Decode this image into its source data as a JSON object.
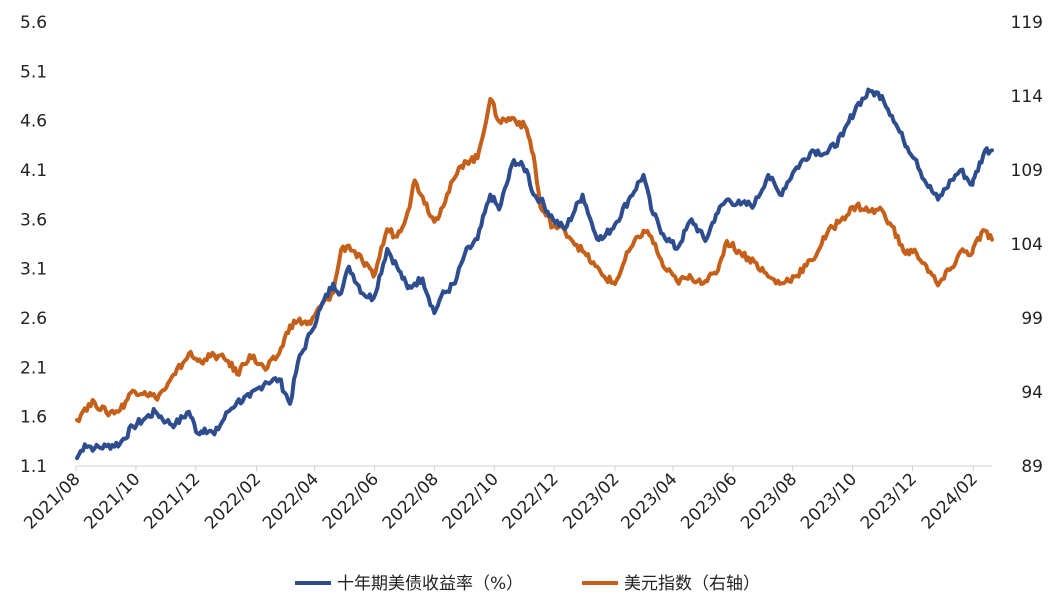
{
  "chart_data": {
    "type": "line",
    "title": "",
    "x_tick_labels": [
      "2021/08",
      "2021/10",
      "2021/12",
      "2022/02",
      "2022/04",
      "2022/06",
      "2022/08",
      "2022/10",
      "2022/12",
      "2023/02",
      "2023/04",
      "2023/06",
      "2023/08",
      "2023/10",
      "2023/12",
      "2024/02"
    ],
    "xlim": [
      "2021-08-01",
      "2024-02-20"
    ],
    "y_left": {
      "ylim": [
        1.1,
        5.6
      ],
      "ticks": [
        "1.1",
        "1.6",
        "2.1",
        "2.6",
        "3.1",
        "3.6",
        "4.1",
        "4.6",
        "5.1",
        "5.6"
      ]
    },
    "y_right": {
      "ylim": [
        89,
        119
      ],
      "ticks": [
        "89",
        "94",
        "99",
        "104",
        "109",
        "114",
        "119"
      ]
    },
    "grid": false,
    "legend_position": "bottom",
    "series": [
      {
        "name": "十年期美债收益率（%）",
        "axis": "left",
        "color": "#2e4d8f",
        "x": [
          "2021-08-02",
          "2021-08-10",
          "2021-08-20",
          "2021-09-01",
          "2021-09-15",
          "2021-09-28",
          "2021-10-10",
          "2021-10-21",
          "2021-11-01",
          "2021-11-10",
          "2021-11-24",
          "2021-12-03",
          "2021-12-10",
          "2021-12-20",
          "2022-01-03",
          "2022-01-12",
          "2022-01-25",
          "2022-02-10",
          "2022-02-24",
          "2022-03-07",
          "2022-03-15",
          "2022-03-28",
          "2022-04-07",
          "2022-04-20",
          "2022-04-28",
          "2022-05-06",
          "2022-05-20",
          "2022-05-31",
          "2022-06-14",
          "2022-06-24",
          "2022-07-05",
          "2022-07-12",
          "2022-07-20",
          "2022-08-01",
          "2022-08-08",
          "2022-08-22",
          "2022-09-01",
          "2022-09-14",
          "2022-09-27",
          "2022-10-06",
          "2022-10-21",
          "2022-11-03",
          "2022-11-10",
          "2022-11-17",
          "2022-11-30",
          "2022-12-12",
          "2022-12-30",
          "2023-01-12",
          "2023-01-19",
          "2023-02-01",
          "2023-02-15",
          "2023-03-02",
          "2023-03-10",
          "2023-03-22",
          "2023-04-05",
          "2023-04-20",
          "2023-05-04",
          "2023-05-15",
          "2023-05-26",
          "2023-06-09",
          "2023-06-23",
          "2023-07-07",
          "2023-07-19",
          "2023-08-03",
          "2023-08-21",
          "2023-09-05",
          "2023-09-21",
          "2023-10-05",
          "2023-10-19",
          "2023-10-31",
          "2023-11-10",
          "2023-11-22",
          "2023-12-05",
          "2023-12-13",
          "2023-12-27",
          "2024-01-10",
          "2024-01-19",
          "2024-01-31",
          "2024-02-02",
          "2024-02-13",
          "2024-02-20"
        ],
        "values": [
          1.18,
          1.32,
          1.28,
          1.3,
          1.33,
          1.5,
          1.58,
          1.65,
          1.55,
          1.52,
          1.65,
          1.43,
          1.48,
          1.42,
          1.65,
          1.75,
          1.8,
          1.95,
          1.98,
          1.73,
          2.15,
          2.45,
          2.7,
          2.95,
          2.85,
          3.12,
          2.85,
          2.8,
          3.3,
          3.12,
          2.9,
          2.95,
          3.0,
          2.65,
          2.82,
          2.95,
          3.25,
          3.4,
          3.85,
          3.7,
          4.2,
          4.1,
          3.85,
          3.8,
          3.6,
          3.5,
          3.85,
          3.45,
          3.4,
          3.55,
          3.8,
          4.05,
          3.7,
          3.45,
          3.3,
          3.6,
          3.38,
          3.65,
          3.8,
          3.75,
          3.75,
          4.05,
          3.85,
          4.1,
          4.3,
          4.27,
          4.45,
          4.75,
          4.9,
          4.85,
          4.65,
          4.4,
          4.2,
          4.0,
          3.8,
          4.0,
          4.1,
          3.95,
          4.02,
          4.3,
          4.3
        ]
      },
      {
        "name": "美元指数（右轴）",
        "axis": "right",
        "color": "#c5601a",
        "x": [
          "2021-08-02",
          "2021-08-10",
          "2021-08-20",
          "2021-09-01",
          "2021-09-15",
          "2021-09-28",
          "2021-10-10",
          "2021-10-21",
          "2021-11-01",
          "2021-11-10",
          "2021-11-24",
          "2021-12-03",
          "2021-12-10",
          "2021-12-20",
          "2022-01-03",
          "2022-01-12",
          "2022-01-25",
          "2022-02-10",
          "2022-02-24",
          "2022-03-07",
          "2022-03-15",
          "2022-03-28",
          "2022-04-07",
          "2022-04-20",
          "2022-04-28",
          "2022-05-06",
          "2022-05-20",
          "2022-05-31",
          "2022-06-14",
          "2022-06-24",
          "2022-07-05",
          "2022-07-12",
          "2022-07-20",
          "2022-08-01",
          "2022-08-08",
          "2022-08-22",
          "2022-09-01",
          "2022-09-14",
          "2022-09-27",
          "2022-10-06",
          "2022-10-21",
          "2022-11-03",
          "2022-11-10",
          "2022-11-17",
          "2022-11-30",
          "2022-12-12",
          "2022-12-30",
          "2023-01-12",
          "2023-01-19",
          "2023-02-01",
          "2023-02-15",
          "2023-03-02",
          "2023-03-10",
          "2023-03-22",
          "2023-04-05",
          "2023-04-20",
          "2023-05-04",
          "2023-05-15",
          "2023-05-26",
          "2023-06-09",
          "2023-06-23",
          "2023-07-07",
          "2023-07-19",
          "2023-08-03",
          "2023-08-21",
          "2023-09-05",
          "2023-09-21",
          "2023-10-05",
          "2023-10-19",
          "2023-10-31",
          "2023-11-10",
          "2023-11-22",
          "2023-12-05",
          "2023-12-13",
          "2023-12-27",
          "2024-01-10",
          "2024-01-19",
          "2024-01-31",
          "2024-02-02",
          "2024-02-13",
          "2024-02-20"
        ],
        "values": [
          92.1,
          92.9,
          93.3,
          92.6,
          92.8,
          94.1,
          94.0,
          93.6,
          94.3,
          95.2,
          96.6,
          96.1,
          96.2,
          96.5,
          96.1,
          95.2,
          96.5,
          95.5,
          96.6,
          98.5,
          98.8,
          98.6,
          99.8,
          100.7,
          103.6,
          103.9,
          102.8,
          101.8,
          105.0,
          104.5,
          106.2,
          108.3,
          107.2,
          105.5,
          106.4,
          108.5,
          109.6,
          109.8,
          113.8,
          112.3,
          112.5,
          111.8,
          110.0,
          106.5,
          105.2,
          104.9,
          103.5,
          102.5,
          101.9,
          101.3,
          103.5,
          104.9,
          104.5,
          102.5,
          101.5,
          101.7,
          101.5,
          102.0,
          104.2,
          103.4,
          102.8,
          101.8,
          101.3,
          101.8,
          102.9,
          104.7,
          105.8,
          106.6,
          106.2,
          106.3,
          105.2,
          103.5,
          103.4,
          102.7,
          101.2,
          102.4,
          103.5,
          103.4,
          103.9,
          104.9,
          104.3
        ]
      }
    ]
  }
}
